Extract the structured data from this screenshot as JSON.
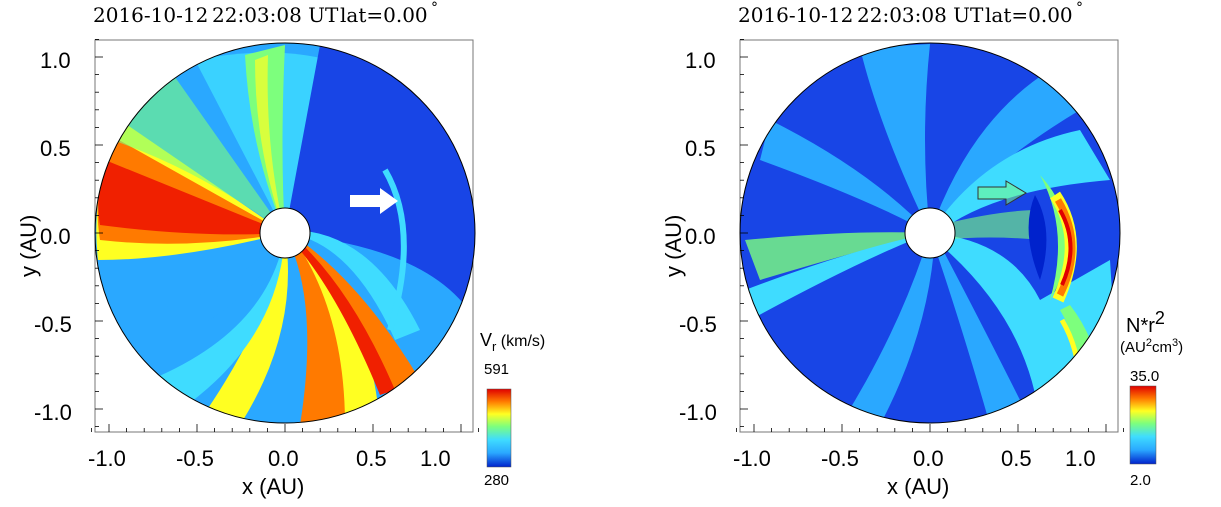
{
  "chart_data": [
    {
      "type": "heatmap",
      "title_date": "2016-10-12",
      "title_time": "22:03:08 UT",
      "title_lat": "lat=0.00",
      "title_deg": "°",
      "xlabel": "x (AU)",
      "ylabel": "y (AU)",
      "xlim": [
        -1.15,
        1.15
      ],
      "ylim": [
        -1.15,
        1.15
      ],
      "x_ticks": [
        "-1.0",
        "-0.5",
        "0.0",
        "0.5",
        "1.0"
      ],
      "y_ticks": [
        "1.0",
        "0.5",
        "0.0",
        "-0.5",
        "-1.0"
      ],
      "colorbar": {
        "label_main": "V",
        "label_sub": "r",
        "label_unit": " (km/s)",
        "max_label": "591",
        "min_label": "280",
        "max": 591,
        "min": 280
      },
      "arrow": {
        "style": "white-filled",
        "x": [
          0.38,
          0.62
        ],
        "y": 0.18
      },
      "inner_radius": 0.14,
      "outer_radius": 1.08,
      "colors": [
        "#0022cc",
        "#2aa8ff",
        "#3fdcff",
        "#7dff7d",
        "#ffff22",
        "#ff7a00",
        "#f02000"
      ]
    },
    {
      "type": "heatmap",
      "title_date": "2016-10-12",
      "title_time": "22:03:08 UT",
      "title_lat": "lat=0.00",
      "title_deg": "°",
      "xlabel": "x (AU)",
      "ylabel": "y (AU)",
      "xlim": [
        -1.15,
        1.15
      ],
      "ylim": [
        -1.15,
        1.15
      ],
      "x_ticks": [
        "-1.0",
        "-0.5",
        "0.0",
        "0.5",
        "1.0"
      ],
      "y_ticks": [
        "1.0",
        "0.5",
        "0.0",
        "-0.5",
        "-1.0"
      ],
      "colorbar": {
        "label_main": "N*r",
        "label_sup": "2",
        "label_unit_a": "(AU",
        "label_unit_sup1": "2",
        "label_unit_b": "cm",
        "label_unit_sup2": "3",
        "label_unit_c": ")",
        "max_label": "35.0",
        "min_label": "2.0",
        "max": 35.0,
        "min": 2.0
      },
      "arrow": {
        "style": "outline-green",
        "x": [
          0.32,
          0.6
        ],
        "y": 0.23
      },
      "inner_radius": 0.14,
      "outer_radius": 1.08,
      "colors": [
        "#0022cc",
        "#2aa8ff",
        "#3fdcff",
        "#7dff7d",
        "#ffff22",
        "#ff7a00",
        "#f02000"
      ]
    }
  ]
}
